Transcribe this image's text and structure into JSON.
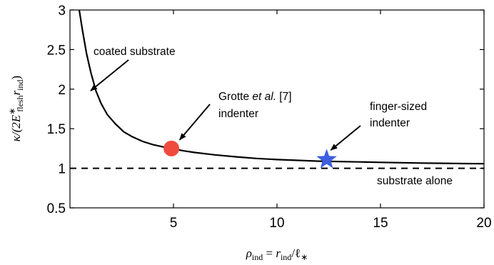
{
  "chart_data": {
    "type": "line",
    "xlim": [
      0,
      20
    ],
    "ylim": [
      0.5,
      3
    ],
    "x_ticks": [
      5,
      10,
      15,
      20
    ],
    "y_ticks": [
      0.5,
      1,
      1.5,
      2,
      2.5,
      3
    ],
    "x_tick_labels": [
      "5",
      "10",
      "15",
      "20"
    ],
    "y_tick_labels": [
      "0.5",
      "1",
      "1.5",
      "2",
      "2.5",
      "3"
    ],
    "xlabel": {
      "rho": "ρ",
      "rho_sub": "ind",
      "eq": " = ",
      "r": "r",
      "r_sub": "ind",
      "slash": "/ℓ",
      "ell_sub": "∗"
    },
    "ylabel": {
      "kappa": "κ/(2E",
      "E_sup": "∗",
      "E_sub": "flesh",
      "r": "r",
      "r_sub": "ind",
      "close": ")"
    },
    "grid": false,
    "series": [
      {
        "style": "solid",
        "color": "#000000",
        "x": [
          0.45,
          0.6,
          0.8,
          1.0,
          1.25,
          1.5,
          1.8,
          2.2,
          2.6,
          3.0,
          3.5,
          4.0,
          4.5,
          5.0,
          5.5,
          6.0,
          7.0,
          8.0,
          9.0,
          10.0,
          11.0,
          12.0,
          13.0,
          14.0,
          15.0,
          16.0,
          17.0,
          18.0,
          19.0,
          20.0
        ],
        "y": [
          3.0,
          2.75,
          2.45,
          2.22,
          1.98,
          1.82,
          1.68,
          1.56,
          1.46,
          1.4,
          1.34,
          1.3,
          1.27,
          1.245,
          1.22,
          1.2,
          1.17,
          1.145,
          1.125,
          1.11,
          1.1,
          1.09,
          1.085,
          1.08,
          1.075,
          1.07,
          1.066,
          1.063,
          1.06,
          1.058
        ]
      },
      {
        "style": "dashed",
        "color": "#000000",
        "x": [
          0,
          20
        ],
        "y": [
          1,
          1
        ]
      }
    ],
    "markers": [
      {
        "shape": "circle",
        "color": "#f04a3e",
        "x": 4.9,
        "y": 1.25
      },
      {
        "shape": "star",
        "color": "#3d5fe0",
        "x": 12.4,
        "y": 1.11
      }
    ],
    "annotations": [
      {
        "lines": [
          "coated substrate"
        ],
        "arrow_to": [
          1.0,
          1.98
        ]
      },
      {
        "lines": [
          "Grotte ",
          "et al.",
          " [7]",
          "indenter"
        ],
        "arrow_to": [
          5.3,
          1.36
        ]
      },
      {
        "lines": [
          "finger-sized",
          "indenter"
        ],
        "arrow_to": [
          12.6,
          1.23
        ]
      },
      {
        "lines": [
          "substrate alone"
        ]
      }
    ]
  }
}
